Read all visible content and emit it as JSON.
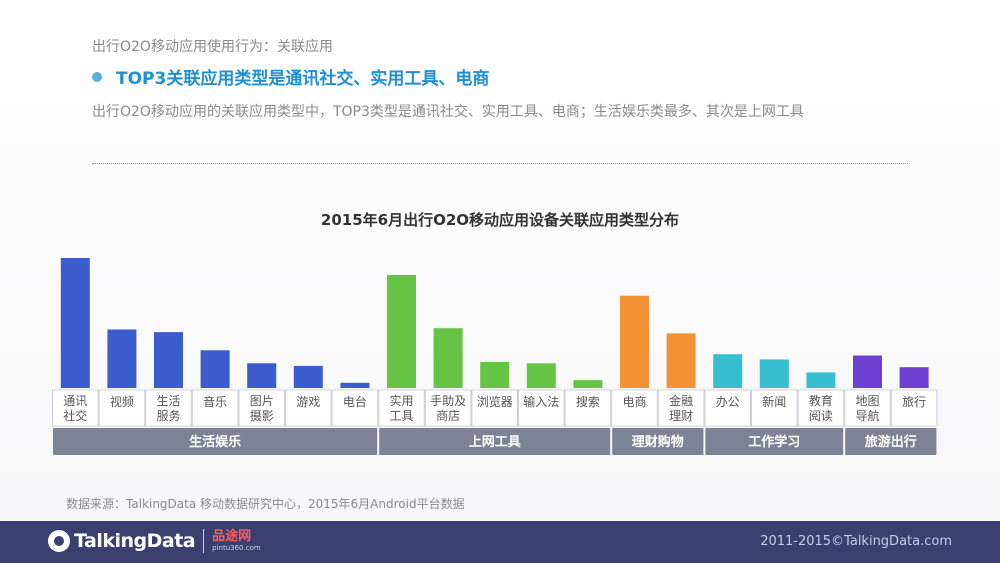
{
  "header": {
    "breadcrumb": "出行O2O移动应用使用行为：关联应用",
    "headline": "TOP3关联应用类型是通讯社交、实用工具、电商",
    "summary": "出行O2O移动应用的关联应用类型中，TOP3类型是通讯社交、实用工具、电商；生活娱乐类最多、其次是上网工具"
  },
  "chart_data": {
    "type": "bar",
    "title": "2015年6月出行O2O移动应用设备关联应用类型分布",
    "unit": "relative share (no axis shown)",
    "ylim": [
      0,
      100
    ],
    "grid": false,
    "categories": [
      "通讯\n社交",
      "视频",
      "生活\n服务",
      "音乐",
      "图片\n摄影",
      "游戏",
      "电台",
      "实用\n工具",
      "手助及\n商店",
      "浏览器",
      "输入法",
      "搜索",
      "电商",
      "金融\n理财",
      "办公",
      "新闻",
      "教育\n阅读",
      "地图\n导航",
      "旅行"
    ],
    "values": [
      100,
      45,
      43,
      29,
      19,
      17,
      4,
      87,
      46,
      20,
      19,
      6,
      71,
      42,
      26,
      22,
      12,
      25,
      16
    ],
    "groups": [
      {
        "name": "生活娱乐",
        "count": 7,
        "color": "#3b5ccd"
      },
      {
        "name": "上网工具",
        "count": 5,
        "color": "#65c443"
      },
      {
        "name": "理财购物",
        "count": 2,
        "color": "#f39135"
      },
      {
        "name": "工作学习",
        "count": 3,
        "color": "#37bfd1"
      },
      {
        "name": "旅游出行",
        "count": 2,
        "color": "#6d3fd0"
      }
    ]
  },
  "footer": {
    "source": "数据来源：TalkingData 移动数据研究中心，2015年6月Android平台数据",
    "brand": "TalkingData",
    "partner_name": "品途网",
    "partner_url": "pintu360.com",
    "copyright": "2011-2015©TalkingData.com"
  }
}
